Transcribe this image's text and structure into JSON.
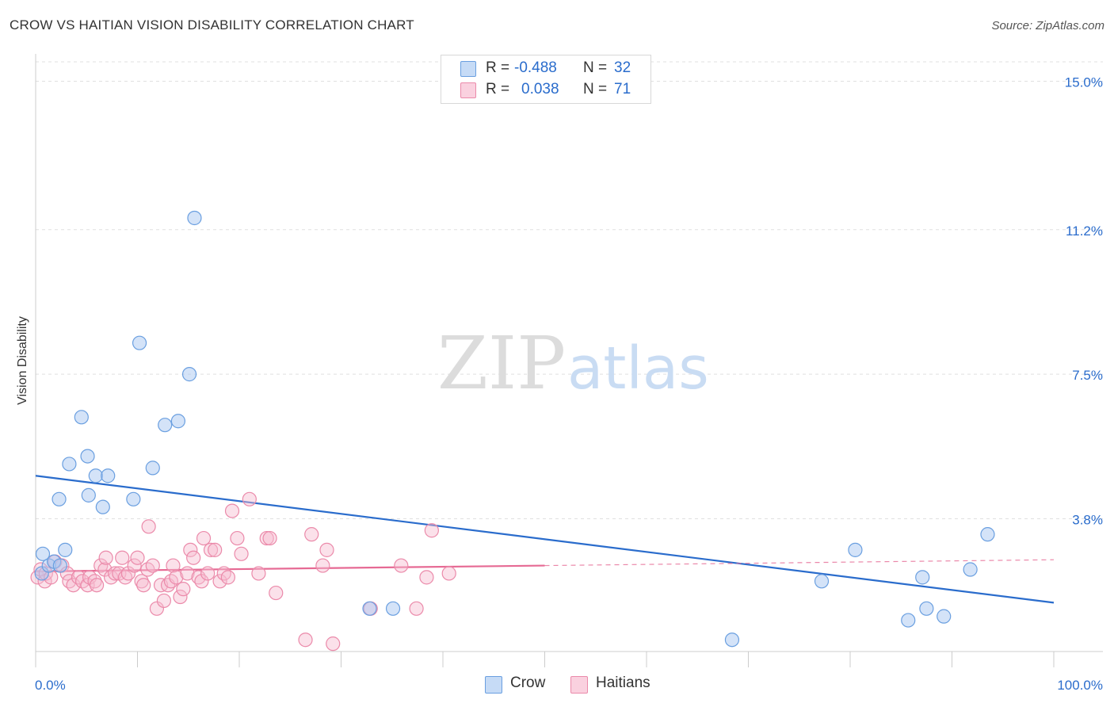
{
  "title": "CROW VS HAITIAN VISION DISABILITY CORRELATION CHART",
  "source": "Source: ZipAtlas.com",
  "watermark": {
    "zip": "ZIP",
    "atlas": "atlas"
  },
  "legend": {
    "rows": [
      {
        "r_label": "R =",
        "r_value": "-0.488",
        "n_label": "N =",
        "n_value": "32"
      },
      {
        "r_label": "R =",
        "r_value": "0.038",
        "n_label": "N =",
        "n_value": "71"
      }
    ]
  },
  "colors": {
    "crow_fill": "#aac8f2",
    "crow_stroke": "#6a9fe0",
    "crow_line": "#2a6ccc",
    "haitian_fill": "#f7bcd0",
    "haitian_stroke": "#eb8aaa",
    "haitian_line": "#e66a94",
    "grid": "#e0e0e0",
    "tick_label": "#2a6ccc",
    "axis": "#cccccc"
  },
  "chart_data": {
    "type": "scatter",
    "title": "CROW VS HAITIAN VISION DISABILITY CORRELATION CHART",
    "xlabel": "",
    "ylabel": "Vision Disability",
    "xlim": [
      0,
      100
    ],
    "ylim": [
      0.4,
      15.7
    ],
    "x_tick_labels": [
      "0.0%",
      "100.0%"
    ],
    "y_ticks": [
      3.8,
      7.5,
      11.2,
      15.0
    ],
    "y_tick_labels": [
      "3.8%",
      "7.5%",
      "11.2%",
      "15.0%"
    ],
    "grid": true,
    "legend_position": "top-center",
    "series": [
      {
        "name": "Crow",
        "r": -0.488,
        "n": 32,
        "trend": {
          "x": [
            0,
            100
          ],
          "y": [
            4.9,
            1.65
          ]
        },
        "points": [
          {
            "x": 0.6,
            "y": 2.4
          },
          {
            "x": 0.7,
            "y": 2.9
          },
          {
            "x": 1.3,
            "y": 2.6
          },
          {
            "x": 1.8,
            "y": 2.7
          },
          {
            "x": 2.3,
            "y": 4.3
          },
          {
            "x": 2.4,
            "y": 2.6
          },
          {
            "x": 2.9,
            "y": 3.0
          },
          {
            "x": 3.3,
            "y": 5.2
          },
          {
            "x": 4.5,
            "y": 6.4
          },
          {
            "x": 5.1,
            "y": 5.4
          },
          {
            "x": 5.2,
            "y": 4.4
          },
          {
            "x": 5.9,
            "y": 4.9
          },
          {
            "x": 6.6,
            "y": 4.1
          },
          {
            "x": 7.1,
            "y": 4.9
          },
          {
            "x": 9.6,
            "y": 4.3
          },
          {
            "x": 10.2,
            "y": 8.3
          },
          {
            "x": 11.5,
            "y": 5.1
          },
          {
            "x": 12.7,
            "y": 6.2
          },
          {
            "x": 14.0,
            "y": 6.3
          },
          {
            "x": 15.1,
            "y": 7.5
          },
          {
            "x": 15.6,
            "y": 11.5
          },
          {
            "x": 32.8,
            "y": 1.5
          },
          {
            "x": 35.1,
            "y": 1.5
          },
          {
            "x": 68.4,
            "y": 0.7
          },
          {
            "x": 77.2,
            "y": 2.2
          },
          {
            "x": 80.5,
            "y": 3.0
          },
          {
            "x": 85.7,
            "y": 1.2
          },
          {
            "x": 87.1,
            "y": 2.3
          },
          {
            "x": 87.5,
            "y": 1.5
          },
          {
            "x": 89.2,
            "y": 1.3
          },
          {
            "x": 91.8,
            "y": 2.5
          },
          {
            "x": 93.5,
            "y": 3.4
          }
        ]
      },
      {
        "name": "Haitians",
        "r": 0.038,
        "n": 71,
        "trend": {
          "x": [
            0,
            50
          ],
          "y": [
            2.45,
            2.6
          ]
        },
        "trend_extension": {
          "x": [
            50,
            100
          ],
          "y": [
            2.6,
            2.75
          ]
        },
        "points": [
          {
            "x": 0.2,
            "y": 2.3
          },
          {
            "x": 0.5,
            "y": 2.5
          },
          {
            "x": 0.9,
            "y": 2.2
          },
          {
            "x": 1.0,
            "y": 2.4
          },
          {
            "x": 1.5,
            "y": 2.3
          },
          {
            "x": 1.9,
            "y": 2.7
          },
          {
            "x": 2.6,
            "y": 2.6
          },
          {
            "x": 3.1,
            "y": 2.4
          },
          {
            "x": 3.3,
            "y": 2.2
          },
          {
            "x": 3.7,
            "y": 2.1
          },
          {
            "x": 4.2,
            "y": 2.3
          },
          {
            "x": 4.6,
            "y": 2.2
          },
          {
            "x": 5.1,
            "y": 2.1
          },
          {
            "x": 5.3,
            "y": 2.3
          },
          {
            "x": 5.8,
            "y": 2.2
          },
          {
            "x": 6.0,
            "y": 2.1
          },
          {
            "x": 6.4,
            "y": 2.6
          },
          {
            "x": 6.8,
            "y": 2.5
          },
          {
            "x": 6.9,
            "y": 2.8
          },
          {
            "x": 7.4,
            "y": 2.3
          },
          {
            "x": 7.8,
            "y": 2.4
          },
          {
            "x": 8.2,
            "y": 2.4
          },
          {
            "x": 8.5,
            "y": 2.8
          },
          {
            "x": 8.8,
            "y": 2.3
          },
          {
            "x": 9.1,
            "y": 2.4
          },
          {
            "x": 9.7,
            "y": 2.6
          },
          {
            "x": 10.0,
            "y": 2.8
          },
          {
            "x": 10.4,
            "y": 2.2
          },
          {
            "x": 10.6,
            "y": 2.1
          },
          {
            "x": 11.0,
            "y": 2.5
          },
          {
            "x": 11.1,
            "y": 3.6
          },
          {
            "x": 11.5,
            "y": 2.6
          },
          {
            "x": 11.9,
            "y": 1.5
          },
          {
            "x": 12.3,
            "y": 2.1
          },
          {
            "x": 12.6,
            "y": 1.7
          },
          {
            "x": 13.0,
            "y": 2.1
          },
          {
            "x": 13.3,
            "y": 2.2
          },
          {
            "x": 13.5,
            "y": 2.6
          },
          {
            "x": 13.8,
            "y": 2.3
          },
          {
            "x": 14.2,
            "y": 1.8
          },
          {
            "x": 14.5,
            "y": 2.0
          },
          {
            "x": 14.9,
            "y": 2.4
          },
          {
            "x": 15.2,
            "y": 3.0
          },
          {
            "x": 15.5,
            "y": 2.8
          },
          {
            "x": 16.0,
            "y": 2.3
          },
          {
            "x": 16.3,
            "y": 2.2
          },
          {
            "x": 16.5,
            "y": 3.3
          },
          {
            "x": 16.9,
            "y": 2.4
          },
          {
            "x": 17.2,
            "y": 3.0
          },
          {
            "x": 17.6,
            "y": 3.0
          },
          {
            "x": 18.1,
            "y": 2.2
          },
          {
            "x": 18.5,
            "y": 2.4
          },
          {
            "x": 18.9,
            "y": 2.3
          },
          {
            "x": 19.3,
            "y": 4.0
          },
          {
            "x": 19.8,
            "y": 3.3
          },
          {
            "x": 20.2,
            "y": 2.9
          },
          {
            "x": 21.0,
            "y": 4.3
          },
          {
            "x": 21.9,
            "y": 2.4
          },
          {
            "x": 22.7,
            "y": 3.3
          },
          {
            "x": 23.0,
            "y": 3.3
          },
          {
            "x": 23.6,
            "y": 1.9
          },
          {
            "x": 26.5,
            "y": 0.7
          },
          {
            "x": 27.1,
            "y": 3.4
          },
          {
            "x": 28.2,
            "y": 2.6
          },
          {
            "x": 28.6,
            "y": 3.0
          },
          {
            "x": 29.2,
            "y": 0.6
          },
          {
            "x": 32.9,
            "y": 1.5
          },
          {
            "x": 35.9,
            "y": 2.6
          },
          {
            "x": 37.4,
            "y": 1.5
          },
          {
            "x": 38.4,
            "y": 2.3
          },
          {
            "x": 38.9,
            "y": 3.5
          },
          {
            "x": 40.6,
            "y": 2.4
          }
        ]
      }
    ]
  }
}
